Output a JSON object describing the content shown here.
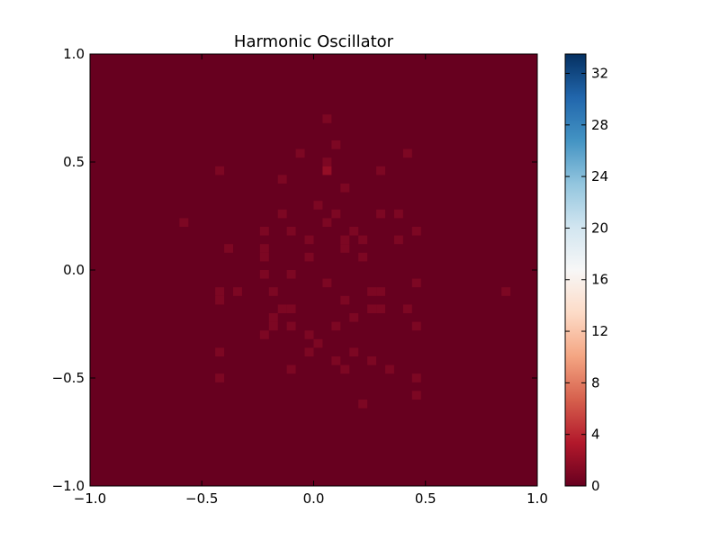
{
  "chart_data": {
    "type": "heatmap",
    "title": "Harmonic Oscillator",
    "xlabel": "",
    "ylabel": "",
    "xlim": [
      -1.0,
      1.0
    ],
    "ylim": [
      -1.0,
      1.0
    ],
    "x_ticks": [
      "−1.0",
      "−0.5",
      "0.0",
      "0.5",
      "1.0"
    ],
    "x_tick_values": [
      -1.0,
      -0.5,
      0.0,
      0.5,
      1.0
    ],
    "y_ticks": [
      "−1.0",
      "−0.5",
      "0.0",
      "0.5",
      "1.0"
    ],
    "y_tick_values": [
      -1.0,
      -0.5,
      0.0,
      0.5,
      1.0
    ],
    "grid": false,
    "background_value": 0,
    "colormap": "RdBu",
    "colormap_stops": [
      "#67001f",
      "#b2182b",
      "#d6604d",
      "#f4a582",
      "#fddbc7",
      "#f7f7f7",
      "#d1e5f0",
      "#92c5de",
      "#4393c3",
      "#2166ac",
      "#053061"
    ],
    "colorbar": {
      "vmin": 0,
      "vmax": 33.5,
      "ticks": [
        "0",
        "4",
        "8",
        "12",
        "16",
        "20",
        "24",
        "28",
        "32"
      ],
      "tick_values": [
        0,
        4,
        8,
        12,
        16,
        20,
        24,
        28,
        32
      ]
    },
    "bin_width": 0.04,
    "points": [
      {
        "x": 0.06,
        "y": 0.7,
        "value": 1
      },
      {
        "x": 0.1,
        "y": 0.58,
        "value": 1
      },
      {
        "x": -0.06,
        "y": 0.54,
        "value": 1
      },
      {
        "x": 0.42,
        "y": 0.54,
        "value": 1
      },
      {
        "x": 0.06,
        "y": 0.5,
        "value": 1
      },
      {
        "x": -0.42,
        "y": 0.46,
        "value": 1
      },
      {
        "x": 0.06,
        "y": 0.46,
        "value": 2
      },
      {
        "x": 0.3,
        "y": 0.46,
        "value": 1
      },
      {
        "x": -0.14,
        "y": 0.42,
        "value": 1
      },
      {
        "x": 0.14,
        "y": 0.38,
        "value": 1
      },
      {
        "x": 0.02,
        "y": 0.3,
        "value": 1
      },
      {
        "x": -0.14,
        "y": 0.26,
        "value": 1
      },
      {
        "x": 0.1,
        "y": 0.26,
        "value": 1
      },
      {
        "x": 0.3,
        "y": 0.26,
        "value": 1
      },
      {
        "x": 0.38,
        "y": 0.26,
        "value": 1
      },
      {
        "x": -0.58,
        "y": 0.22,
        "value": 1
      },
      {
        "x": 0.06,
        "y": 0.22,
        "value": 1
      },
      {
        "x": -0.22,
        "y": 0.18,
        "value": 1
      },
      {
        "x": -0.1,
        "y": 0.18,
        "value": 1
      },
      {
        "x": 0.18,
        "y": 0.18,
        "value": 1
      },
      {
        "x": 0.46,
        "y": 0.18,
        "value": 1
      },
      {
        "x": -0.02,
        "y": 0.14,
        "value": 1
      },
      {
        "x": 0.14,
        "y": 0.14,
        "value": 1
      },
      {
        "x": 0.22,
        "y": 0.14,
        "value": 1
      },
      {
        "x": 0.38,
        "y": 0.14,
        "value": 1
      },
      {
        "x": -0.38,
        "y": 0.1,
        "value": 1
      },
      {
        "x": -0.22,
        "y": 0.1,
        "value": 1
      },
      {
        "x": 0.14,
        "y": 0.1,
        "value": 1
      },
      {
        "x": -0.22,
        "y": 0.06,
        "value": 1
      },
      {
        "x": -0.02,
        "y": 0.06,
        "value": 1
      },
      {
        "x": 0.22,
        "y": 0.06,
        "value": 1
      },
      {
        "x": -0.22,
        "y": -0.02,
        "value": 1
      },
      {
        "x": -0.1,
        "y": -0.02,
        "value": 1
      },
      {
        "x": 0.06,
        "y": -0.06,
        "value": 1
      },
      {
        "x": 0.46,
        "y": -0.06,
        "value": 1
      },
      {
        "x": -0.42,
        "y": -0.1,
        "value": 1
      },
      {
        "x": -0.34,
        "y": -0.1,
        "value": 1
      },
      {
        "x": -0.18,
        "y": -0.1,
        "value": 1
      },
      {
        "x": 0.26,
        "y": -0.1,
        "value": 1
      },
      {
        "x": 0.3,
        "y": -0.1,
        "value": 1
      },
      {
        "x": 0.86,
        "y": -0.1,
        "value": 1
      },
      {
        "x": -0.42,
        "y": -0.14,
        "value": 1
      },
      {
        "x": 0.14,
        "y": -0.14,
        "value": 1
      },
      {
        "x": -0.14,
        "y": -0.18,
        "value": 1
      },
      {
        "x": -0.1,
        "y": -0.18,
        "value": 1
      },
      {
        "x": 0.26,
        "y": -0.18,
        "value": 1
      },
      {
        "x": 0.3,
        "y": -0.18,
        "value": 1
      },
      {
        "x": 0.42,
        "y": -0.18,
        "value": 1
      },
      {
        "x": -0.18,
        "y": -0.22,
        "value": 1
      },
      {
        "x": 0.18,
        "y": -0.22,
        "value": 1
      },
      {
        "x": -0.18,
        "y": -0.26,
        "value": 1
      },
      {
        "x": -0.1,
        "y": -0.26,
        "value": 1
      },
      {
        "x": 0.1,
        "y": -0.26,
        "value": 1
      },
      {
        "x": 0.46,
        "y": -0.26,
        "value": 1
      },
      {
        "x": -0.22,
        "y": -0.3,
        "value": 1
      },
      {
        "x": -0.02,
        "y": -0.3,
        "value": 1
      },
      {
        "x": 0.02,
        "y": -0.34,
        "value": 1
      },
      {
        "x": -0.42,
        "y": -0.38,
        "value": 1
      },
      {
        "x": -0.02,
        "y": -0.38,
        "value": 1
      },
      {
        "x": 0.18,
        "y": -0.38,
        "value": 1
      },
      {
        "x": 0.1,
        "y": -0.42,
        "value": 1
      },
      {
        "x": 0.26,
        "y": -0.42,
        "value": 1
      },
      {
        "x": -0.1,
        "y": -0.46,
        "value": 1
      },
      {
        "x": 0.14,
        "y": -0.46,
        "value": 1
      },
      {
        "x": 0.34,
        "y": -0.46,
        "value": 1
      },
      {
        "x": -0.42,
        "y": -0.5,
        "value": 1
      },
      {
        "x": 0.46,
        "y": -0.5,
        "value": 1
      },
      {
        "x": 0.46,
        "y": -0.58,
        "value": 1
      },
      {
        "x": 0.22,
        "y": -0.62,
        "value": 1
      }
    ]
  }
}
